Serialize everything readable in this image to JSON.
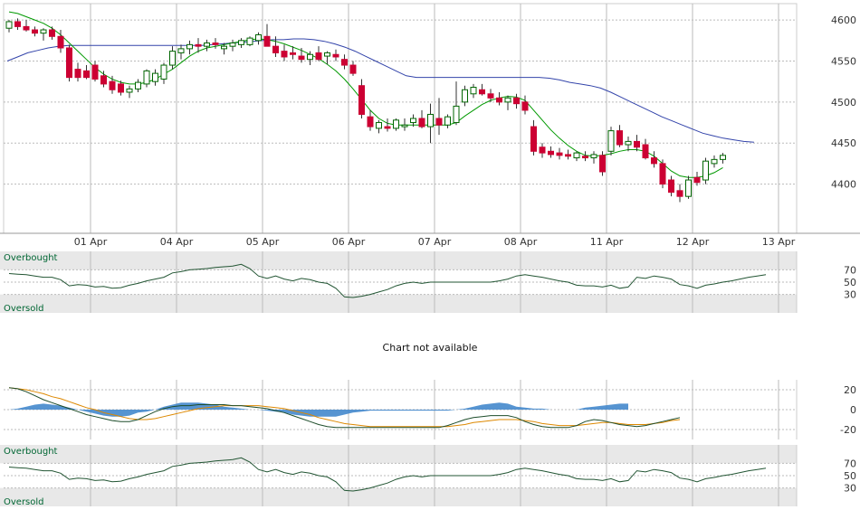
{
  "chart_data": [
    {
      "type": "candlestick",
      "panel": "price",
      "x_tick_labels": [
        "01 Apr",
        "04 Apr",
        "05 Apr",
        "06 Apr",
        "07 Apr",
        "08 Apr",
        "11 Apr",
        "12 Apr",
        "13 Apr"
      ],
      "y_ticks": [
        4400,
        4450,
        4500,
        4550,
        4600
      ],
      "ylim": [
        4340,
        4620
      ],
      "grid": true,
      "colors": {
        "up": "#ffffff",
        "down": "#cc0033",
        "wick": "#333333",
        "sma_short": "#009900",
        "sma_long": "#3344aa"
      },
      "candles": [
        [
          4590,
          4600,
          4585,
          4598
        ],
        [
          4598,
          4602,
          4588,
          4592
        ],
        [
          4592,
          4600,
          4586,
          4588
        ],
        [
          4588,
          4592,
          4580,
          4584
        ],
        [
          4584,
          4590,
          4575,
          4588
        ],
        [
          4588,
          4592,
          4576,
          4580
        ],
        [
          4580,
          4588,
          4560,
          4566
        ],
        [
          4566,
          4570,
          4525,
          4530
        ],
        [
          4540,
          4548,
          4525,
          4530
        ],
        [
          4538,
          4545,
          4528,
          4530
        ],
        [
          4545,
          4550,
          4525,
          4528
        ],
        [
          4532,
          4538,
          4518,
          4522
        ],
        [
          4525,
          4532,
          4510,
          4515
        ],
        [
          4522,
          4526,
          4508,
          4512
        ],
        [
          4512,
          4520,
          4505,
          4516
        ],
        [
          4516,
          4528,
          4512,
          4524
        ],
        [
          4522,
          4540,
          4518,
          4538
        ],
        [
          4525,
          4540,
          4520,
          4535
        ],
        [
          4528,
          4548,
          4522,
          4545
        ],
        [
          4545,
          4568,
          4540,
          4562
        ],
        [
          4560,
          4570,
          4552,
          4565
        ],
        [
          4565,
          4575,
          4558,
          4570
        ],
        [
          4570,
          4578,
          4560,
          4568
        ],
        [
          4568,
          4576,
          4562,
          4572
        ],
        [
          4572,
          4578,
          4565,
          4570
        ],
        [
          4565,
          4572,
          4558,
          4568
        ],
        [
          4568,
          4576,
          4562,
          4572
        ],
        [
          4570,
          4578,
          4566,
          4575
        ],
        [
          4570,
          4580,
          4568,
          4578
        ],
        [
          4575,
          4585,
          4570,
          4582
        ],
        [
          4580,
          4595,
          4568,
          4568
        ],
        [
          4568,
          4580,
          4555,
          4560
        ],
        [
          4562,
          4570,
          4550,
          4555
        ],
        [
          4560,
          4568,
          4552,
          4558
        ],
        [
          4556,
          4566,
          4548,
          4552
        ],
        [
          4552,
          4562,
          4545,
          4558
        ],
        [
          4560,
          4568,
          4550,
          4552
        ],
        [
          4556,
          4562,
          4546,
          4560
        ],
        [
          4558,
          4564,
          4550,
          4555
        ],
        [
          4552,
          4558,
          4540,
          4545
        ],
        [
          4545,
          4550,
          4532,
          4535
        ],
        [
          4520,
          4528,
          4480,
          4485
        ],
        [
          4482,
          4490,
          4465,
          4470
        ],
        [
          4468,
          4478,
          4462,
          4475
        ],
        [
          4470,
          4480,
          4464,
          4468
        ],
        [
          4468,
          4480,
          4465,
          4478
        ],
        [
          4470,
          4480,
          4465,
          4472
        ],
        [
          4475,
          4485,
          4470,
          4480
        ],
        [
          4480,
          4490,
          4468,
          4470
        ],
        [
          4470,
          4498,
          4450,
          4485
        ],
        [
          4480,
          4505,
          4460,
          4472
        ],
        [
          4472,
          4485,
          4468,
          4482
        ],
        [
          4475,
          4525,
          4472,
          4495
        ],
        [
          4500,
          4520,
          4495,
          4515
        ],
        [
          4510,
          4522,
          4505,
          4518
        ],
        [
          4515,
          4522,
          4508,
          4510
        ],
        [
          4510,
          4516,
          4500,
          4505
        ],
        [
          4505,
          4512,
          4496,
          4500
        ],
        [
          4500,
          4508,
          4490,
          4505
        ],
        [
          4505,
          4510,
          4492,
          4498
        ],
        [
          4500,
          4508,
          4485,
          4490
        ],
        [
          4470,
          4478,
          4435,
          4440
        ],
        [
          4445,
          4450,
          4432,
          4438
        ],
        [
          4440,
          4446,
          4432,
          4436
        ],
        [
          4438,
          4444,
          4430,
          4435
        ],
        [
          4436,
          4442,
          4430,
          4434
        ],
        [
          4432,
          4440,
          4428,
          4438
        ],
        [
          4434,
          4440,
          4428,
          4432
        ],
        [
          4432,
          4440,
          4425,
          4436
        ],
        [
          4435,
          4440,
          4410,
          4415
        ],
        [
          4440,
          4470,
          4435,
          4465
        ],
        [
          4465,
          4472,
          4445,
          4448
        ],
        [
          4448,
          4458,
          4440,
          4452
        ],
        [
          4452,
          4460,
          4440,
          4445
        ],
        [
          4448,
          4455,
          4430,
          4432
        ],
        [
          4432,
          4440,
          4420,
          4425
        ],
        [
          4425,
          4430,
          4395,
          4400
        ],
        [
          4405,
          4410,
          4385,
          4390
        ],
        [
          4392,
          4400,
          4378,
          4385
        ],
        [
          4385,
          4410,
          4382,
          4405
        ],
        [
          4408,
          4415,
          4398,
          4402
        ],
        [
          4405,
          4432,
          4400,
          4428
        ],
        [
          4425,
          4435,
          4420,
          4430
        ],
        [
          4430,
          4438,
          4425,
          4435
        ]
      ],
      "sma_short": [
        4610,
        4608,
        4604,
        4600,
        4596,
        4590,
        4582,
        4572,
        4562,
        4552,
        4542,
        4534,
        4528,
        4524,
        4522,
        4522,
        4524,
        4528,
        4534,
        4540,
        4548,
        4556,
        4562,
        4566,
        4568,
        4570,
        4572,
        4574,
        4576,
        4577,
        4576,
        4574,
        4571,
        4567,
        4563,
        4558,
        4553,
        4546,
        4538,
        4528,
        4516,
        4503,
        4490,
        4480,
        4474,
        4472,
        4472,
        4472,
        4472,
        4472,
        4472,
        4472,
        4475,
        4483,
        4490,
        4497,
        4502,
        4505,
        4507,
        4506,
        4502,
        4490,
        4478,
        4466,
        4456,
        4447,
        4440,
        4435,
        4434,
        4435,
        4437,
        4440,
        4442,
        4442,
        4440,
        4434,
        4425,
        4416,
        4410,
        4408,
        4408,
        4410,
        4414,
        4420
      ],
      "sma_long": [
        4550,
        4555,
        4560,
        4563,
        4566,
        4568,
        4569,
        4569,
        4569,
        4569,
        4569,
        4569,
        4569,
        4569,
        4569,
        4569,
        4569,
        4569,
        4569,
        4569,
        4570,
        4571,
        4572,
        4573,
        4574,
        4575,
        4576,
        4576,
        4577,
        4577,
        4576,
        4574,
        4571,
        4567,
        4562,
        4556,
        4550,
        4544,
        4538,
        4532,
        4530,
        4530,
        4530,
        4530,
        4530,
        4530,
        4530,
        4530,
        4530,
        4530,
        4530,
        4530,
        4530,
        4529,
        4527,
        4524,
        4522,
        4520,
        4517,
        4512,
        4506,
        4500,
        4494,
        4488,
        4482,
        4477,
        4472,
        4467,
        4462,
        4459,
        4456,
        4454,
        4452,
        4451
      ],
      "x_axis": {
        "labels_at": [
          10,
          20,
          30,
          40,
          50,
          60,
          70,
          80,
          90
        ]
      }
    },
    {
      "type": "line",
      "panel": "rsi",
      "labels": {
        "top": "Overbought",
        "bottom": "Oversold"
      },
      "y_ticks": [
        70,
        50,
        30
      ],
      "ylim": [
        0,
        100
      ],
      "values": [
        64,
        63,
        62,
        60,
        58,
        58,
        54,
        44,
        46,
        45,
        42,
        43,
        40,
        41,
        45,
        48,
        52,
        55,
        58,
        65,
        67,
        70,
        71,
        72,
        74,
        75,
        76,
        79,
        72,
        60,
        56,
        60,
        55,
        52,
        56,
        54,
        50,
        48,
        40,
        26,
        25,
        27,
        30,
        34,
        38,
        44,
        48,
        50,
        48,
        50,
        50,
        50,
        50,
        50,
        50,
        50,
        50,
        52,
        55,
        60,
        62,
        60,
        58,
        55,
        52,
        50,
        45,
        44,
        44,
        42,
        45,
        40,
        42,
        58,
        56,
        60,
        58,
        55,
        46,
        44,
        40,
        45,
        47,
        50,
        52,
        55,
        58,
        60,
        62
      ],
      "band_color": "#e8e8e8",
      "line_color": "#225533"
    },
    {
      "type": "text",
      "panel": "empty",
      "message": "Chart not available"
    },
    {
      "type": "macd",
      "panel": "macd",
      "y_ticks": [
        20,
        0,
        -20
      ],
      "ylim": [
        -30,
        30
      ],
      "macd": [
        22,
        21,
        18,
        14,
        10,
        7,
        4,
        1,
        -2,
        -5,
        -7,
        -9,
        -11,
        -12,
        -12,
        -10,
        -6,
        -2,
        1,
        3,
        4,
        4,
        5,
        5,
        5,
        5,
        4,
        4,
        3,
        2,
        1,
        -1,
        -3,
        -6,
        -9,
        -12,
        -15,
        -17,
        -18,
        -18,
        -18,
        -18,
        -18,
        -18,
        -18,
        -18,
        -18,
        -18,
        -18,
        -18,
        -18,
        -16,
        -13,
        -10,
        -8,
        -7,
        -6,
        -6,
        -6,
        -8,
        -12,
        -15,
        -17,
        -18,
        -18,
        -18,
        -16,
        -12,
        -10,
        -11,
        -13,
        -15,
        -16,
        -17,
        -16,
        -14,
        -12,
        -10,
        -8
      ],
      "signal": [
        22,
        21,
        20,
        18,
        16,
        13,
        11,
        8,
        5,
        2,
        0,
        -3,
        -5,
        -7,
        -9,
        -10,
        -10,
        -9,
        -7,
        -5,
        -3,
        -1,
        1,
        2,
        3,
        4,
        4,
        4,
        4,
        4,
        3,
        2,
        1,
        -1,
        -3,
        -5,
        -8,
        -10,
        -12,
        -14,
        -15,
        -16,
        -17,
        -17,
        -17,
        -17,
        -17,
        -17,
        -17,
        -17,
        -17,
        -17,
        -16,
        -15,
        -13,
        -12,
        -11,
        -10,
        -10,
        -10,
        -11,
        -12,
        -14,
        -15,
        -16,
        -16,
        -16,
        -15,
        -14,
        -13,
        -13,
        -14,
        -15,
        -15,
        -15,
        -14,
        -13,
        -11,
        -10
      ],
      "histogram": [
        0,
        1,
        3,
        5,
        6,
        5,
        4,
        2,
        0,
        -2,
        -4,
        -6,
        -7,
        -7,
        -6,
        -3,
        -2,
        0,
        3,
        5,
        7,
        7,
        7,
        6,
        5,
        3,
        2,
        1,
        0,
        0,
        -1,
        -2,
        -3,
        -5,
        -6,
        -7,
        -7,
        -7,
        -7,
        -5,
        -3,
        -2,
        -1,
        -1,
        -1,
        -1,
        -1,
        -1,
        -1,
        -1,
        -1,
        -1,
        0,
        1,
        3,
        5,
        6,
        7,
        6,
        3,
        2,
        1,
        1,
        0,
        0,
        0,
        0,
        2,
        3,
        4,
        5,
        6,
        6
      ],
      "colors": {
        "macd": "#1e4d2b",
        "signal": "#dd8800",
        "histogram": "#4488cc"
      }
    },
    {
      "type": "line",
      "panel": "rsi2",
      "labels": {
        "top": "Overbought",
        "bottom": "Oversold"
      },
      "y_ticks": [
        70,
        50,
        30
      ],
      "ylim": [
        0,
        100
      ],
      "values": [
        64,
        63,
        62,
        60,
        58,
        58,
        54,
        44,
        46,
        45,
        42,
        43,
        40,
        41,
        45,
        48,
        52,
        55,
        58,
        65,
        67,
        70,
        71,
        72,
        74,
        75,
        76,
        79,
        72,
        60,
        56,
        60,
        55,
        52,
        56,
        54,
        50,
        48,
        40,
        26,
        25,
        27,
        30,
        34,
        38,
        44,
        48,
        50,
        48,
        50,
        50,
        50,
        50,
        50,
        50,
        50,
        50,
        52,
        55,
        60,
        62,
        60,
        58,
        55,
        52,
        50,
        45,
        44,
        44,
        42,
        45,
        40,
        42,
        58,
        56,
        60,
        58,
        55,
        46,
        44,
        40,
        45,
        47,
        50,
        52,
        55,
        58,
        60,
        62
      ],
      "band_color": "#e8e8e8",
      "line_color": "#225533"
    }
  ]
}
